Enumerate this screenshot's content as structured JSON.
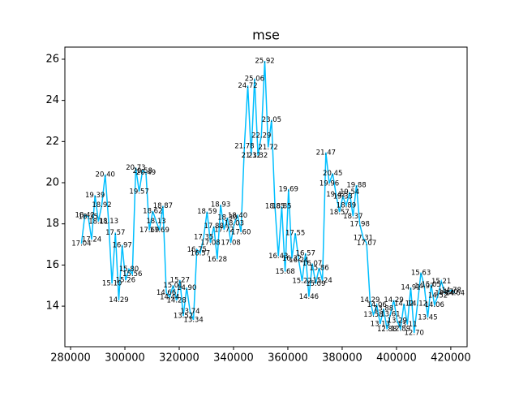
{
  "chart_data": {
    "type": "line",
    "title": "mse",
    "color": "#00bfff",
    "x": [
      284000,
      285250,
      286500,
      287750,
      289000,
      290250,
      291500,
      292750,
      294000,
      295250,
      296500,
      297750,
      299000,
      300250,
      301500,
      302750,
      304000,
      305250,
      306500,
      307750,
      309000,
      310250,
      311500,
      312750,
      314000,
      315250,
      316500,
      317750,
      319000,
      320250,
      321500,
      322750,
      324000,
      325250,
      326500,
      327750,
      329000,
      330250,
      331500,
      332750,
      334000,
      335250,
      336500,
      337750,
      339000,
      340250,
      341500,
      342750,
      344000,
      345250,
      346500,
      347750,
      349000,
      350250,
      351500,
      352750,
      354000,
      355250,
      356500,
      357750,
      359000,
      360250,
      361500,
      362750,
      364000,
      365250,
      366500,
      367750,
      369000,
      370250,
      371500,
      372750,
      374000,
      375250,
      376500,
      377750,
      379000,
      380250,
      381500,
      382750,
      384000,
      385250,
      386500,
      387750,
      389000,
      390250,
      391500,
      392750,
      394000,
      395250,
      396500,
      397750,
      399000,
      400250,
      401500,
      402750,
      404000,
      405250,
      406500,
      407750,
      409000,
      410250,
      411500,
      412750,
      414000,
      415250,
      416500,
      417750,
      419000,
      420250,
      421500
    ],
    "values": [
      17.04,
      18.42,
      18.35,
      17.24,
      19.39,
      18.11,
      18.92,
      20.4,
      18.13,
      15.1,
      17.57,
      14.29,
      16.97,
      15.26,
      15.8,
      15.56,
      20.73,
      19.57,
      20.58,
      20.49,
      17.69,
      18.62,
      18.13,
      17.69,
      18.87,
      14.66,
      14.44,
      15.01,
      14.28,
      15.27,
      13.52,
      14.9,
      13.74,
      13.34,
      16.75,
      16.57,
      17.35,
      18.59,
      17.08,
      17.88,
      16.28,
      18.93,
      17.72,
      18.3,
      17.08,
      18.03,
      18.4,
      17.6,
      21.78,
      24.72,
      21.32,
      25.06,
      21.32,
      22.29,
      25.92,
      21.72,
      23.05,
      18.85,
      16.43,
      18.85,
      15.68,
      19.69,
      16.32,
      17.55,
      16.24,
      15.22,
      16.57,
      14.46,
      16.07,
      15.09,
      15.86,
      15.24,
      21.47,
      19.96,
      20.45,
      19.42,
      18.57,
      19.33,
      18.89,
      19.54,
      18.37,
      19.88,
      17.98,
      17.31,
      17.07,
      14.29,
      13.58,
      14.06,
      13.13,
      13.88,
      12.88,
      13.61,
      14.29,
      13.29,
      12.89,
      14.12,
      13.11,
      14.91,
      12.7,
      14.12,
      15.63,
      14.97,
      13.45,
      15.05,
      14.06,
      14.52,
      15.21,
      14.64,
      14.7,
      14.78,
      14.64
    ],
    "value_labels": [
      "17.04",
      "18.42",
      "18.35",
      "17.24",
      "19.39",
      "18.11",
      "18.92",
      "20.40",
      "18.13",
      "15.10",
      "17.57",
      "14.29",
      "16.97",
      "15.26",
      "15.80",
      "15.56",
      "20.73",
      "19.57",
      "20.58",
      "20.49",
      "17.69",
      "18.62",
      "18.13",
      "17.69",
      "18.87",
      "14.66",
      "14.44",
      "15.01",
      "14.28",
      "15.27",
      "13.52",
      "14.90",
      "13.74",
      "13.34",
      "16.75",
      "16.57",
      "17.35",
      "18.59",
      "17.08",
      "17.88",
      "16.28",
      "18.93",
      "17.72",
      "18.30",
      "17.08",
      "18.03",
      "18.40",
      "17.60",
      "21.78",
      "24.72",
      "21.32",
      "25.06",
      "21.32",
      "22.29",
      "25.92",
      "21.72",
      "23.05",
      "18.85",
      "16.43",
      "18.85",
      "15.68",
      "19.69",
      "16.32",
      "17.55",
      "16.24",
      "15.22",
      "16.57",
      "14.46",
      "16.07",
      "15.09",
      "15.86",
      "15.24",
      "21.47",
      "19.96",
      "20.45",
      "19.42",
      "18.57",
      "19.33",
      "18.89",
      "19.54",
      "18.37",
      "19.88",
      "17.98",
      "17.31",
      "17.07",
      "14.29",
      "13.58",
      "14.06",
      "13.13",
      "13.88",
      "12.88",
      "13.61",
      "14.29",
      "13.29",
      "12.89",
      "14.12",
      "13.11",
      "14.91",
      "12.70",
      "14.12",
      "15.63",
      "14.97",
      "13.45",
      "15.05",
      "14.06",
      "14.52",
      "15.21",
      "14.64",
      "14.70",
      "14.78",
      "14.64"
    ],
    "xlim": [
      277900,
      426000
    ],
    "ylim": [
      12.03,
      26.59
    ],
    "xticks": [
      280000,
      300000,
      320000,
      340000,
      360000,
      380000,
      400000,
      420000
    ],
    "yticks": [
      14,
      16,
      18,
      20,
      22,
      24,
      26
    ]
  }
}
